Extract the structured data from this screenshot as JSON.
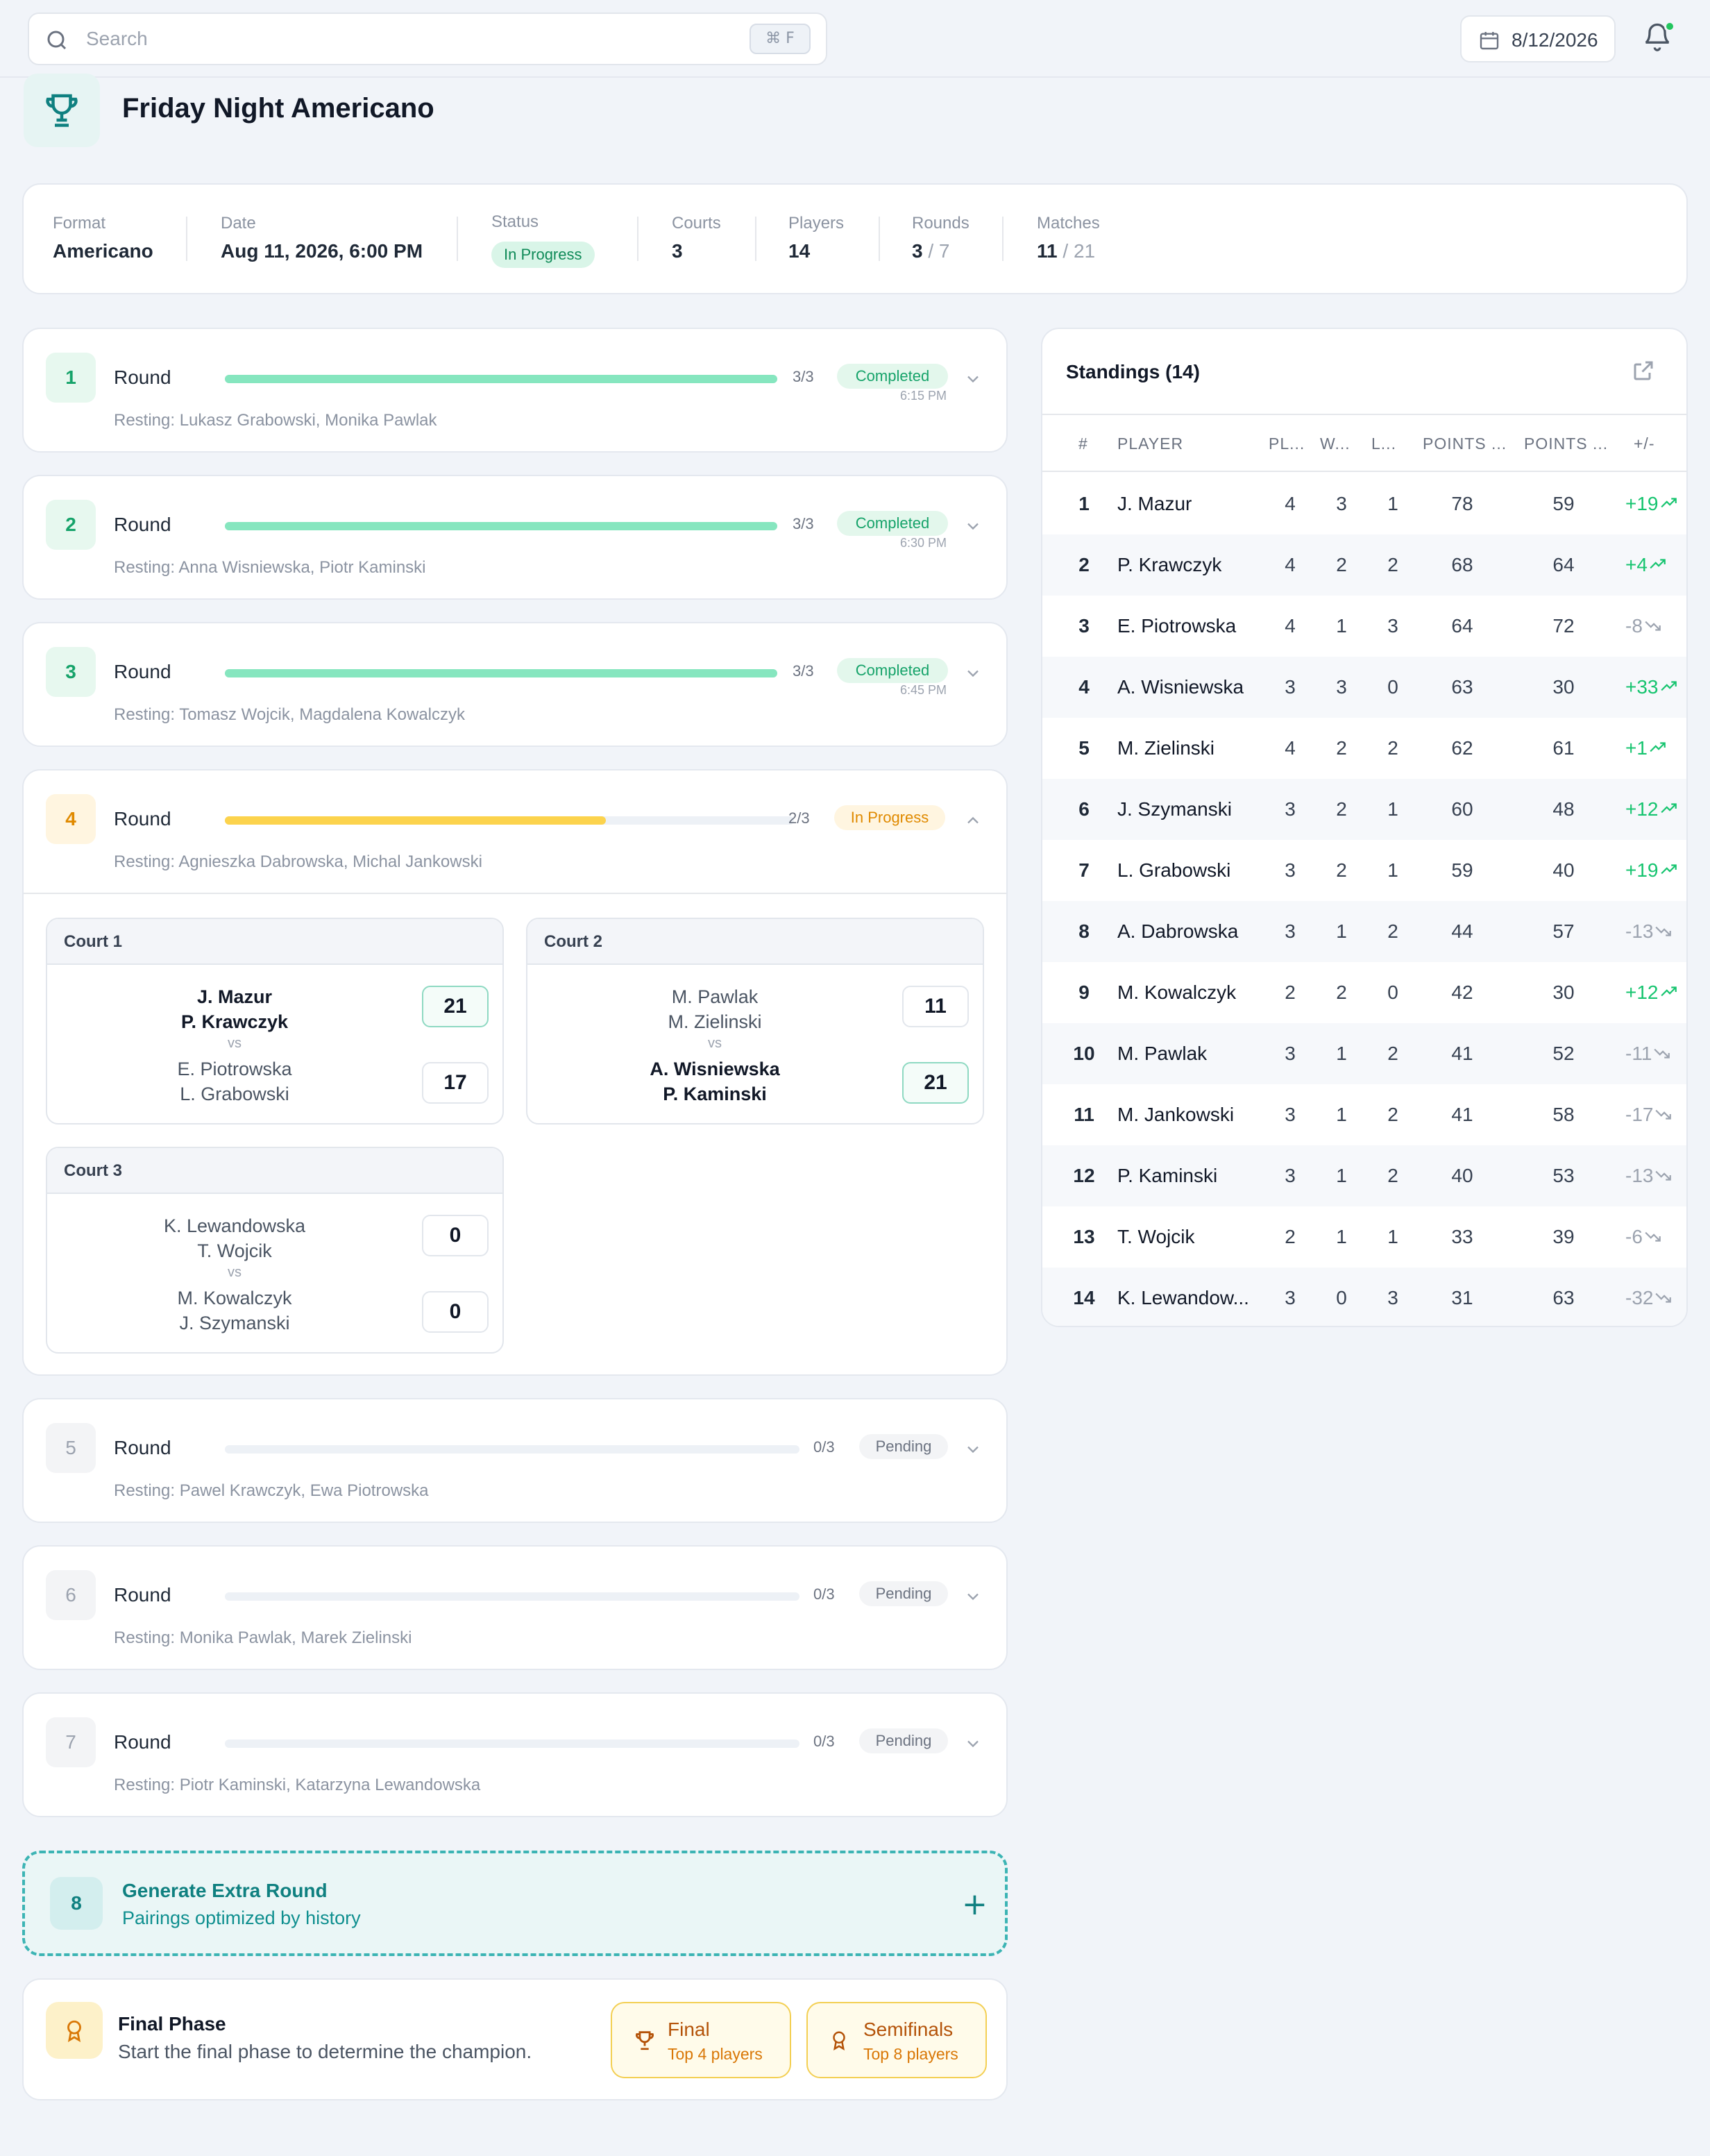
{
  "search": {
    "placeholder": "Search",
    "shortcut": "⌘  F"
  },
  "date_button": "8/12/2026",
  "title": "Friday Night Americano",
  "info": {
    "format_label": "Format",
    "format": "Americano",
    "date_label": "Date",
    "date": "Aug 11, 2026, 6:00 PM",
    "status_label": "Status",
    "status": "In Progress",
    "courts_label": "Courts",
    "courts": "3",
    "players_label": "Players",
    "players": "14",
    "rounds_label": "Rounds",
    "rounds_done": "3",
    "rounds_total": "/ 7",
    "matches_label": "Matches",
    "matches_done": "11",
    "matches_total": "/ 21"
  },
  "rounds": [
    {
      "num": "1",
      "label": "Round",
      "count": "3/3",
      "progress": 1.0,
      "status": "Completed",
      "time": "6:15 PM",
      "resting": "Resting: Lukasz Grabowski, Monika Pawlak"
    },
    {
      "num": "2",
      "label": "Round",
      "count": "3/3",
      "progress": 1.0,
      "status": "Completed",
      "time": "6:30 PM",
      "resting": "Resting: Anna Wisniewska, Piotr Kaminski"
    },
    {
      "num": "3",
      "label": "Round",
      "count": "3/3",
      "progress": 1.0,
      "status": "Completed",
      "time": "6:45 PM",
      "resting": "Resting: Tomasz Wojcik, Magdalena Kowalczyk"
    },
    {
      "num": "4",
      "label": "Round",
      "count": "2/3",
      "progress": 0.67,
      "status": "In Progress",
      "resting": "Resting: Agnieszka Dabrowska, Michal Jankowski"
    },
    {
      "num": "5",
      "label": "Round",
      "count": "0/3",
      "progress": 0,
      "status": "Pending",
      "resting": "Resting: Pawel Krawczyk, Ewa Piotrowska"
    },
    {
      "num": "6",
      "label": "Round",
      "count": "0/3",
      "progress": 0,
      "status": "Pending",
      "resting": "Resting: Monika Pawlak, Marek Zielinski"
    },
    {
      "num": "7",
      "label": "Round",
      "count": "0/3",
      "progress": 0,
      "status": "Pending",
      "resting": "Resting: Piotr Kaminski, Katarzyna Lewandowska"
    }
  ],
  "courts": [
    {
      "name": "Court 1",
      "team_a": [
        "J. Mazur",
        "P. Krawczyk"
      ],
      "score_a": "21",
      "team_b": [
        "E. Piotrowska",
        "L. Grabowski"
      ],
      "score_b": "17",
      "vs": "vs"
    },
    {
      "name": "Court 2",
      "team_a": [
        "M. Pawlak",
        "M. Zielinski"
      ],
      "score_a": "11",
      "team_b": [
        "A. Wisniewska",
        "P. Kaminski"
      ],
      "score_b": "21",
      "vs": "vs"
    },
    {
      "name": "Court 3",
      "team_a": [
        "K. Lewandowska",
        "T. Wojcik"
      ],
      "score_a": "0",
      "team_b": [
        "M. Kowalczyk",
        "J. Szymanski"
      ],
      "score_b": "0",
      "vs": "vs"
    }
  ],
  "extra": {
    "num": "8",
    "title": "Generate Extra Round",
    "subtitle": "Pairings optimized by history",
    "plus": "+"
  },
  "final": {
    "title": "Final Phase",
    "subtitle": "Start the final phase to determine the champion.",
    "btn_final": "Final",
    "btn_final_sub": "Top 4 players",
    "btn_semi": "Semifinals",
    "btn_semi_sub": "Top 8 players"
  },
  "standings": {
    "title": "Standings (14)",
    "headers": [
      "#",
      "PLAYER",
      "PL...",
      "W...",
      "L...",
      "POINTS ...",
      "POINTS ...",
      "+/-"
    ],
    "rows": [
      [
        "1",
        "J. Mazur",
        "4",
        "3",
        "1",
        "78",
        "59",
        "+19"
      ],
      [
        "2",
        "P. Krawczyk",
        "4",
        "2",
        "2",
        "68",
        "64",
        "+4"
      ],
      [
        "3",
        "E. Piotrowska",
        "4",
        "1",
        "3",
        "64",
        "72",
        "-8"
      ],
      [
        "4",
        "A. Wisniewska",
        "3",
        "3",
        "0",
        "63",
        "30",
        "+33"
      ],
      [
        "5",
        "M. Zielinski",
        "4",
        "2",
        "2",
        "62",
        "61",
        "+1"
      ],
      [
        "6",
        "J. Szymanski",
        "3",
        "2",
        "1",
        "60",
        "48",
        "+12"
      ],
      [
        "7",
        "L. Grabowski",
        "3",
        "2",
        "1",
        "59",
        "40",
        "+19"
      ],
      [
        "8",
        "A. Dabrowska",
        "3",
        "1",
        "2",
        "44",
        "57",
        "-13"
      ],
      [
        "9",
        "M. Kowalczyk",
        "2",
        "2",
        "0",
        "42",
        "30",
        "+12"
      ],
      [
        "10",
        "M. Pawlak",
        "3",
        "1",
        "2",
        "41",
        "52",
        "-11"
      ],
      [
        "11",
        "M. Jankowski",
        "3",
        "1",
        "2",
        "41",
        "58",
        "-17"
      ],
      [
        "12",
        "P. Kaminski",
        "3",
        "1",
        "2",
        "40",
        "53",
        "-13"
      ],
      [
        "13",
        "T. Wojcik",
        "2",
        "1",
        "1",
        "33",
        "39",
        "-6"
      ],
      [
        "14",
        "K. Lewandow...",
        "3",
        "0",
        "3",
        "31",
        "63",
        "-32"
      ]
    ]
  },
  "colors": {
    "accent": "#0f8080",
    "success": "#16a36a",
    "warning": "#e08a00",
    "bar_done": "#86e6bf",
    "bar_prog": "#fcd34d"
  }
}
